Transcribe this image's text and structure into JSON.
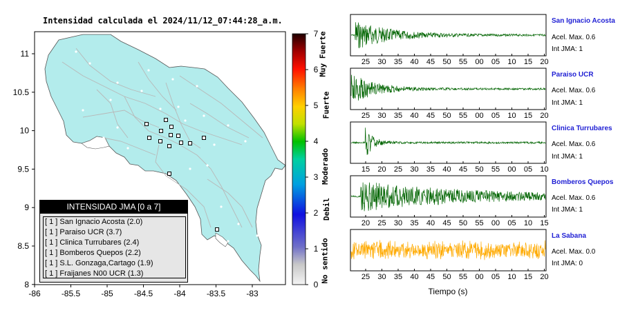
{
  "map": {
    "title": "Intensidad calculada el 2024/11/12_07:44:28_a.m.",
    "x_ticks": [
      "-86",
      "-85.5",
      "-85",
      "-84.5",
      "-84",
      "-83.5",
      "-83"
    ],
    "y_ticks": [
      "11",
      "10.5",
      "10",
      "9.5",
      "9",
      "8.5",
      "8"
    ],
    "land_color": "#b3ecec",
    "station_markers": 14
  },
  "colorbar": {
    "ticks": [
      "7",
      "6",
      "5",
      "4",
      "3",
      "2",
      "1",
      "0"
    ],
    "labels": [
      "Muy Fuerte",
      "Fuerte",
      "Moderado",
      "Debil",
      "No sentido"
    ]
  },
  "legend": {
    "title": "INTENSIDAD JMA [0 a 7]",
    "items": [
      "[ 1 ]  San Ignacio Acosta (2.0)",
      "[ 1 ]  Paraiso UCR (3.7)",
      "[ 1 ]  Clinica Turrubares (2.4)",
      "[ 1 ]  Bomberos Quepos (2.2)",
      "[ 1 ]  S.L. Gonzaga,Cartago (1.9)",
      "[ 1 ]  Fraijanes N00 UCR (1.3)"
    ]
  },
  "waveforms": {
    "xlabel": "Tiempo (s)",
    "panels": [
      {
        "name": "San Ignacio Acosta",
        "acel": "Acel. Max. 0.6",
        "jma": "Int JMA: 1",
        "color": "#006400",
        "ticks": [
          "25",
          "30",
          "35",
          "40",
          "45",
          "50",
          "55",
          "00",
          "05",
          "10",
          "15",
          "20"
        ],
        "event": 0.02,
        "amp": 0.75,
        "decay": 0.18
      },
      {
        "name": "Paraiso UCR",
        "acel": "Acel. Max. 0.6",
        "jma": "Int JMA: 1",
        "color": "#006400",
        "ticks": [
          "25",
          "30",
          "35",
          "40",
          "45",
          "50",
          "55",
          "00",
          "05",
          "10",
          "15",
          "20"
        ],
        "event": 0.0,
        "amp": 0.8,
        "decay": 0.12
      },
      {
        "name": "Clinica Turrubares",
        "acel": "Acel. Max. 0.6",
        "jma": "Int JMA: 1",
        "color": "#006400",
        "ticks": [
          "15",
          "20",
          "25",
          "30",
          "35",
          "40",
          "45",
          "50",
          "55",
          "00",
          "05",
          "10"
        ],
        "event": 0.07,
        "amp": 0.9,
        "decay": 0.04
      },
      {
        "name": "Bomberos Quepos",
        "acel": "Acel. Max. 0.6",
        "jma": "Int JMA: 1",
        "color": "#006400",
        "ticks": [
          "20",
          "25",
          "30",
          "35",
          "40",
          "45",
          "50",
          "55",
          "00",
          "05",
          "10",
          "15"
        ],
        "event": 0.05,
        "amp": 0.75,
        "decay": 0.6
      },
      {
        "name": "La Sabana",
        "acel": "Acel. Max. 0.0",
        "jma": "Int JMA: 0",
        "color": "#ffaa00",
        "ticks": [
          "25",
          "30",
          "35",
          "40",
          "45",
          "50",
          "55",
          "00",
          "05",
          "10",
          "15",
          "20"
        ],
        "event": 0.0,
        "amp": 0.55,
        "decay": 5.0
      }
    ]
  }
}
